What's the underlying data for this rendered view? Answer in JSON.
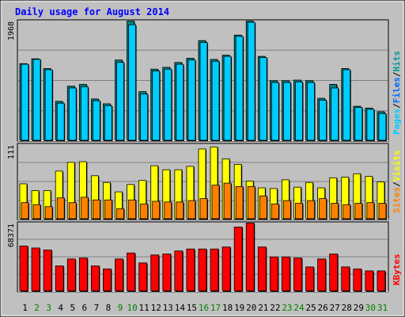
{
  "chart_data": {
    "type": "bar",
    "title": "Daily usage for August 2014",
    "categories": [
      "1",
      "2",
      "3",
      "4",
      "5",
      "6",
      "7",
      "8",
      "9",
      "10",
      "11",
      "12",
      "13",
      "14",
      "15",
      "16",
      "17",
      "18",
      "19",
      "20",
      "21",
      "22",
      "23",
      "24",
      "25",
      "26",
      "27",
      "28",
      "29",
      "30",
      "31"
    ],
    "weekend_days": [
      "2",
      "3",
      "9",
      "10",
      "16",
      "17",
      "23",
      "24",
      "30",
      "31"
    ],
    "panels": [
      {
        "name": "pages-files-hits",
        "max_label": "1968",
        "ymax": 1968,
        "axis_labels": [
          {
            "text": "Pages",
            "color": "#00ccff"
          },
          {
            "text": "/",
            "color": "#000000"
          },
          {
            "text": "Files",
            "color": "#0066ff"
          },
          {
            "text": "/",
            "color": "#000000"
          },
          {
            "text": "Hits",
            "color": "#009999"
          }
        ],
        "series": [
          {
            "name": "Hits",
            "color": "#008080",
            "values": [
              1260,
              1340,
              1180,
              640,
              890,
              920,
              680,
              600,
              1320,
              1960,
              800,
              1170,
              1200,
              1280,
              1350,
              1640,
              1330,
              1400,
              1730,
              1960,
              1380,
              980,
              980,
              990,
              980,
              690,
              920,
              1180,
              560,
              530,
              470
            ]
          },
          {
            "name": "Files",
            "color": "#00ccff",
            "values": [
              1250,
              1330,
              1160,
              610,
              860,
              880,
              650,
              570,
              1280,
              1900,
              760,
              1140,
              1170,
              1250,
              1320,
              1610,
              1300,
              1380,
              1710,
              1940,
              1360,
              950,
              950,
              960,
              950,
              660,
              860,
              1160,
              540,
              510,
              440
            ]
          }
        ]
      },
      {
        "name": "sites-visits",
        "max_label": "111",
        "ymax": 111,
        "axis_labels": [
          {
            "text": "Sites",
            "color": "#ff8000"
          },
          {
            "text": "/",
            "color": "#000000"
          },
          {
            "text": "Visits",
            "color": "#ffff00"
          }
        ],
        "series": [
          {
            "name": "Visits",
            "color": "#ffff00",
            "values": [
              52,
              42,
              42,
              71,
              84,
              85,
              64,
              54,
              40,
              51,
              57,
              79,
              73,
              73,
              78,
              104,
              107,
              89,
              81,
              56,
              46,
              45,
              58,
              47,
              54,
              46,
              61,
              62,
              67,
              63,
              55
            ]
          },
          {
            "name": "Sites",
            "color": "#ff8000",
            "values": [
              24,
              21,
              18,
              31,
              24,
              32,
              28,
              28,
              15,
              28,
              22,
              26,
              25,
              25,
              27,
              30,
              50,
              53,
              48,
              48,
              34,
              22,
              27,
              23,
              27,
              30,
              23,
              21,
              23,
              24,
              23
            ]
          }
        ]
      },
      {
        "name": "kbytes",
        "max_label": "68371",
        "ymax": 68371,
        "axis_labels": [
          {
            "text": "KBytes",
            "color": "#ff0000"
          }
        ],
        "series": [
          {
            "name": "KBytes",
            "color": "#ff0000",
            "values": [
              45000,
              43000,
              41000,
              25000,
              32000,
              33000,
              25000,
              22000,
              32000,
              38000,
              28000,
              36000,
              37000,
              40000,
              42000,
              42000,
              42000,
              44000,
              64000,
              68000,
              44000,
              34000,
              34000,
              33000,
              24000,
              32000,
              37000,
              24000,
              22000,
              20000,
              20000
            ]
          }
        ]
      }
    ],
    "colors": {
      "background": "#c0c0c0",
      "frame": "#ffffff",
      "grid": "#808080",
      "title": "#0000ff",
      "weekday_label": "#000000",
      "weekend_label": "#008000"
    }
  }
}
